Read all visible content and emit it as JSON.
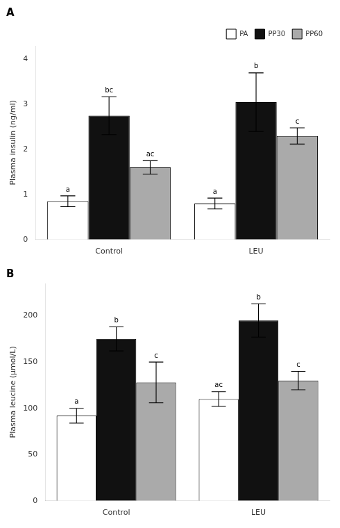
{
  "chart_data": [
    {
      "type": "bar",
      "title": "A",
      "y_label": "Plasma insulin (ng/ml)",
      "categories": [
        "Control",
        "LEU"
      ],
      "series": [
        {
          "name": "PA",
          "color": "#ffffff",
          "values": [
            0.85,
            0.8
          ],
          "errors": [
            0.12,
            0.12
          ],
          "annotations": [
            "a",
            "a"
          ]
        },
        {
          "name": "PP30",
          "color": "#111111",
          "values": [
            2.75,
            3.05
          ],
          "errors": [
            0.42,
            0.65
          ],
          "annotations": [
            "bc",
            "b"
          ]
        },
        {
          "name": "PP60",
          "color": "#aaaaaa",
          "values": [
            1.6,
            2.3
          ],
          "errors": [
            0.15,
            0.18
          ],
          "annotations": [
            "ac",
            "c"
          ]
        }
      ],
      "ylim": [
        0,
        4.3
      ],
      "yticks": [
        0,
        1,
        2,
        3,
        4
      ],
      "grid": false,
      "legend": "upper right"
    },
    {
      "type": "bar",
      "title": "B",
      "y_label": "Plasma leucine (μmol/L)",
      "categories": [
        "Control",
        "LEU"
      ],
      "series": [
        {
          "name": "PA",
          "color": "#ffffff",
          "values": [
            92,
            110
          ],
          "errors": [
            8,
            8
          ],
          "annotations": [
            "a",
            "ac"
          ]
        },
        {
          "name": "PP30",
          "color": "#111111",
          "values": [
            175,
            195
          ],
          "errors": [
            13,
            18
          ],
          "annotations": [
            "b",
            "b"
          ]
        },
        {
          "name": "PP60",
          "color": "#aaaaaa",
          "values": [
            128,
            130
          ],
          "errors": [
            22,
            10
          ],
          "annotations": [
            "c",
            "c"
          ]
        }
      ],
      "ylim": [
        0,
        235
      ],
      "yticks": [
        0,
        50,
        100,
        150,
        200
      ],
      "grid": false
    }
  ]
}
